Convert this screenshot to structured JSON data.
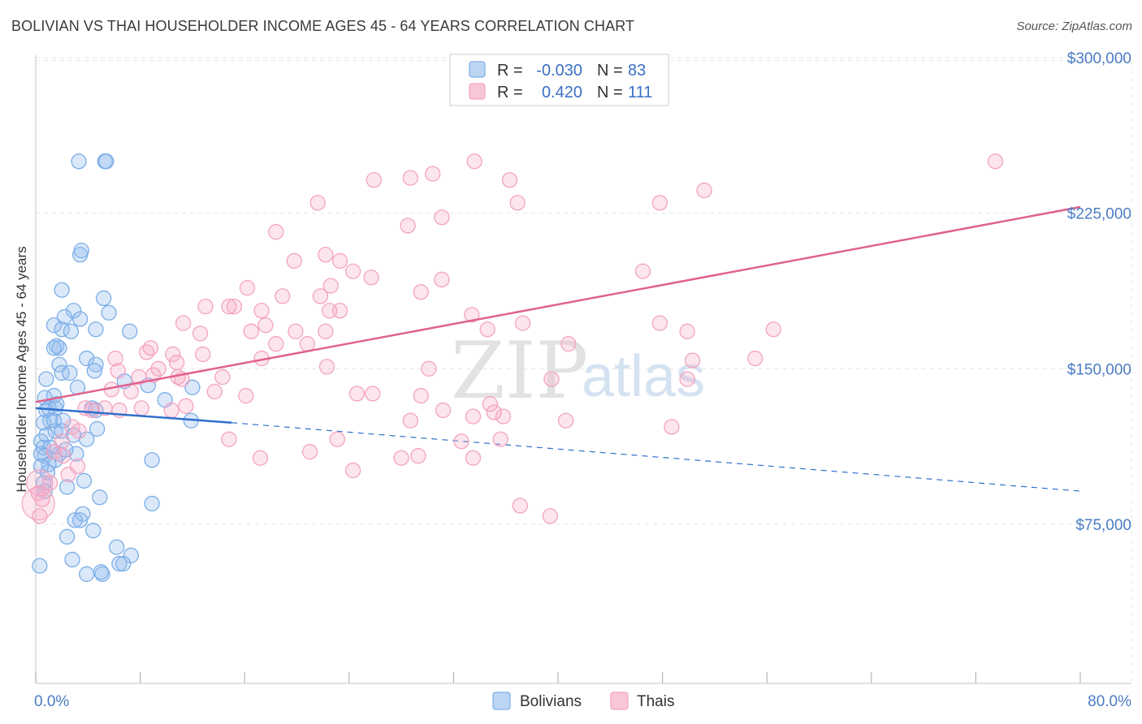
{
  "title": "BOLIVIAN VS THAI HOUSEHOLDER INCOME AGES 45 - 64 YEARS CORRELATION CHART",
  "source": "Source: ZipAtlas.com",
  "watermark": {
    "zip": "ZIP",
    "atlas": "atlas"
  },
  "chart_data": {
    "type": "scatter",
    "title": "BOLIVIAN VS THAI HOUSEHOLDER INCOME AGES 45 - 64 YEARS CORRELATION CHART",
    "xlabel": "",
    "ylabel": "Householder Income Ages 45 - 64 years",
    "xlim": [
      0,
      80
    ],
    "ylim": [
      10000,
      310000
    ],
    "x_tick_labels": [
      "0.0%",
      "80.0%"
    ],
    "y_ticks": [
      75000,
      150000,
      225000,
      300000
    ],
    "y_tick_labels": [
      "$75,000",
      "$150,000",
      "$225,000",
      "$300,000"
    ],
    "grid": true,
    "legend_position": "top-center",
    "stats": [
      {
        "r_label": "R =",
        "r": "-0.030",
        "n_label": "N =",
        "n": "83"
      },
      {
        "r_label": "R =",
        "r": "0.420",
        "n_label": "N =",
        "n": "111"
      }
    ],
    "series": [
      {
        "name": "Bolivians",
        "color": "#7baee8",
        "line_color": "#2f6fcc",
        "trend": {
          "x0": 0.0,
          "y0": 131000,
          "x1": 15.0,
          "y1": 124000,
          "dash_x1": 80.0,
          "dash_y1": 91000
        },
        "points": [
          [
            3.3,
            250000
          ],
          [
            5.3,
            250000
          ],
          [
            5.4,
            250000
          ],
          [
            3.4,
            205000
          ],
          [
            3.5,
            207000
          ],
          [
            2.0,
            188000
          ],
          [
            5.2,
            184000
          ],
          [
            2.9,
            178000
          ],
          [
            5.6,
            177000
          ],
          [
            2.2,
            175000
          ],
          [
            3.4,
            174000
          ],
          [
            1.4,
            171000
          ],
          [
            2.0,
            169000
          ],
          [
            2.7,
            168000
          ],
          [
            4.6,
            169000
          ],
          [
            7.2,
            168000
          ],
          [
            1.6,
            161000
          ],
          [
            1.8,
            160000
          ],
          [
            1.4,
            160000
          ],
          [
            3.9,
            155000
          ],
          [
            1.8,
            152000
          ],
          [
            4.6,
            152000
          ],
          [
            0.8,
            145000
          ],
          [
            2.0,
            148000
          ],
          [
            4.5,
            149000
          ],
          [
            2.6,
            148000
          ],
          [
            6.8,
            144000
          ],
          [
            0.7,
            136000
          ],
          [
            1.4,
            137000
          ],
          [
            1.6,
            133000
          ],
          [
            3.2,
            141000
          ],
          [
            8.6,
            142000
          ],
          [
            12.0,
            141000
          ],
          [
            9.9,
            135000
          ],
          [
            0.8,
            130000
          ],
          [
            1.0,
            131000
          ],
          [
            1.5,
            131000
          ],
          [
            4.3,
            131000
          ],
          [
            4.6,
            130000
          ],
          [
            1.1,
            125000
          ],
          [
            0.6,
            124000
          ],
          [
            1.4,
            125000
          ],
          [
            2.1,
            125000
          ],
          [
            11.9,
            125000
          ],
          [
            1.5,
            120000
          ],
          [
            2.0,
            120000
          ],
          [
            4.7,
            121000
          ],
          [
            0.8,
            118000
          ],
          [
            2.9,
            118000
          ],
          [
            0.4,
            115000
          ],
          [
            3.9,
            116000
          ],
          [
            0.6,
            112000
          ],
          [
            1.1,
            112000
          ],
          [
            0.4,
            109000
          ],
          [
            0.7,
            108000
          ],
          [
            1.8,
            109000
          ],
          [
            3.1,
            109000
          ],
          [
            2.3,
            111000
          ],
          [
            1.5,
            106000
          ],
          [
            1.0,
            104000
          ],
          [
            0.4,
            103000
          ],
          [
            8.9,
            106000
          ],
          [
            0.9,
            100000
          ],
          [
            0.6,
            95000
          ],
          [
            3.7,
            96000
          ],
          [
            0.7,
            91000
          ],
          [
            2.4,
            93000
          ],
          [
            4.9,
            88000
          ],
          [
            8.9,
            85000
          ],
          [
            3.6,
            80000
          ],
          [
            3.0,
            77000
          ],
          [
            3.4,
            77000
          ],
          [
            4.4,
            72000
          ],
          [
            2.4,
            69000
          ],
          [
            6.2,
            64000
          ],
          [
            7.3,
            60000
          ],
          [
            2.8,
            58000
          ],
          [
            6.4,
            56000
          ],
          [
            6.7,
            56000
          ],
          [
            3.9,
            51000
          ],
          [
            5.1,
            51000
          ],
          [
            5.0,
            52000
          ],
          [
            0.3,
            55000
          ]
        ]
      },
      {
        "name": "Thais",
        "color": "#f4a3bf",
        "line_color": "#e0628e",
        "trend": {
          "x0": 0.0,
          "y0": 134000,
          "x1": 80.0,
          "y1": 228000
        },
        "points": [
          [
            73.5,
            250000
          ],
          [
            33.6,
            250000
          ],
          [
            30.4,
            244000
          ],
          [
            28.7,
            242000
          ],
          [
            25.9,
            241000
          ],
          [
            36.3,
            241000
          ],
          [
            51.2,
            236000
          ],
          [
            21.6,
            230000
          ],
          [
            36.9,
            230000
          ],
          [
            47.8,
            230000
          ],
          [
            31.1,
            223000
          ],
          [
            28.5,
            219000
          ],
          [
            18.4,
            216000
          ],
          [
            22.2,
            205000
          ],
          [
            19.8,
            202000
          ],
          [
            23.3,
            202000
          ],
          [
            24.3,
            197000
          ],
          [
            46.5,
            197000
          ],
          [
            25.7,
            194000
          ],
          [
            31.1,
            193000
          ],
          [
            22.6,
            190000
          ],
          [
            16.2,
            189000
          ],
          [
            18.9,
            185000
          ],
          [
            21.8,
            185000
          ],
          [
            29.5,
            187000
          ],
          [
            13.0,
            180000
          ],
          [
            15.2,
            180000
          ],
          [
            14.8,
            180000
          ],
          [
            17.3,
            178000
          ],
          [
            22.5,
            178000
          ],
          [
            23.3,
            178000
          ],
          [
            11.3,
            172000
          ],
          [
            17.6,
            171000
          ],
          [
            33.4,
            176000
          ],
          [
            37.3,
            172000
          ],
          [
            47.8,
            172000
          ],
          [
            12.6,
            167000
          ],
          [
            16.5,
            168000
          ],
          [
            19.9,
            168000
          ],
          [
            22.2,
            168000
          ],
          [
            34.6,
            169000
          ],
          [
            49.9,
            168000
          ],
          [
            56.5,
            169000
          ],
          [
            18.4,
            162000
          ],
          [
            20.8,
            162000
          ],
          [
            40.8,
            162000
          ],
          [
            10.5,
            157000
          ],
          [
            8.5,
            158000
          ],
          [
            8.8,
            160000
          ],
          [
            12.8,
            157000
          ],
          [
            17.3,
            155000
          ],
          [
            50.3,
            154000
          ],
          [
            55.1,
            155000
          ],
          [
            6.1,
            155000
          ],
          [
            10.8,
            153000
          ],
          [
            9.4,
            150000
          ],
          [
            6.3,
            149000
          ],
          [
            7.9,
            146000
          ],
          [
            9.0,
            147000
          ],
          [
            10.9,
            146000
          ],
          [
            11.2,
            145000
          ],
          [
            14.3,
            146000
          ],
          [
            22.3,
            151000
          ],
          [
            30.1,
            150000
          ],
          [
            39.5,
            145000
          ],
          [
            49.9,
            145000
          ],
          [
            5.8,
            140000
          ],
          [
            7.3,
            139000
          ],
          [
            13.7,
            139000
          ],
          [
            16.1,
            137000
          ],
          [
            24.6,
            138000
          ],
          [
            25.8,
            138000
          ],
          [
            29.5,
            137000
          ],
          [
            34.8,
            133000
          ],
          [
            5.3,
            131000
          ],
          [
            3.8,
            131000
          ],
          [
            4.3,
            130000
          ],
          [
            6.4,
            130000
          ],
          [
            8.1,
            131000
          ],
          [
            10.4,
            130000
          ],
          [
            11.5,
            132000
          ],
          [
            31.2,
            130000
          ],
          [
            35.8,
            127000
          ],
          [
            28.7,
            125000
          ],
          [
            33.5,
            127000
          ],
          [
            35.1,
            129000
          ],
          [
            40.6,
            125000
          ],
          [
            48.7,
            122000
          ],
          [
            2.8,
            122000
          ],
          [
            3.3,
            120000
          ],
          [
            14.8,
            116000
          ],
          [
            23.1,
            116000
          ],
          [
            32.6,
            115000
          ],
          [
            35.6,
            116000
          ],
          [
            21.0,
            110000
          ],
          [
            2.0,
            115000
          ],
          [
            1.4,
            110000
          ],
          [
            2.1,
            108000
          ],
          [
            17.2,
            107000
          ],
          [
            28.0,
            107000
          ],
          [
            29.3,
            108000
          ],
          [
            33.5,
            107000
          ],
          [
            3.2,
            103000
          ],
          [
            24.3,
            101000
          ],
          [
            1.1,
            95000
          ],
          [
            0.2,
            90000
          ],
          [
            0.5,
            87000
          ],
          [
            0.3,
            79000
          ],
          [
            37.1,
            84000
          ],
          [
            39.4,
            79000
          ],
          [
            2.5,
            99000
          ]
        ]
      }
    ]
  }
}
